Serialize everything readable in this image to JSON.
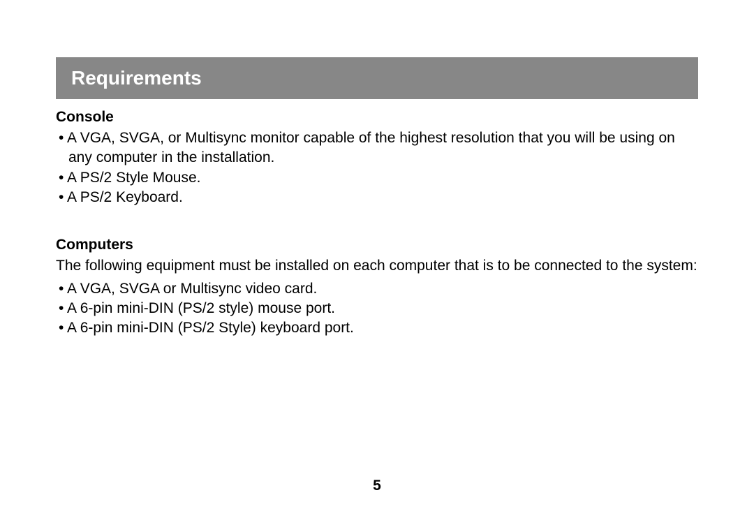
{
  "title": "Requirements",
  "sections": {
    "console": {
      "heading": "Console",
      "bullets": [
        "A VGA, SVGA, or Multisync monitor capable of the highest resolution that you will be using on any computer in the installation.",
        "A PS/2 Style Mouse.",
        "A PS/2 Keyboard."
      ]
    },
    "computers": {
      "heading": "Computers",
      "intro": "The following equipment must be installed on each computer that is to be connected to the system:",
      "bullets": [
        "A VGA, SVGA or Multisync video card.",
        "A 6-pin mini-DIN (PS/2 style) mouse port.",
        "A 6-pin mini-DIN (PS/2 Style) keyboard port."
      ]
    }
  },
  "pageNumber": "5",
  "colors": {
    "titleBarBg": "#878787",
    "titleBarText": "#ffffff",
    "bodyText": "#000000",
    "pageBg": "#ffffff"
  },
  "fonts": {
    "title_pt": 28,
    "body_pt": 21,
    "heading_weight": "bold"
  }
}
